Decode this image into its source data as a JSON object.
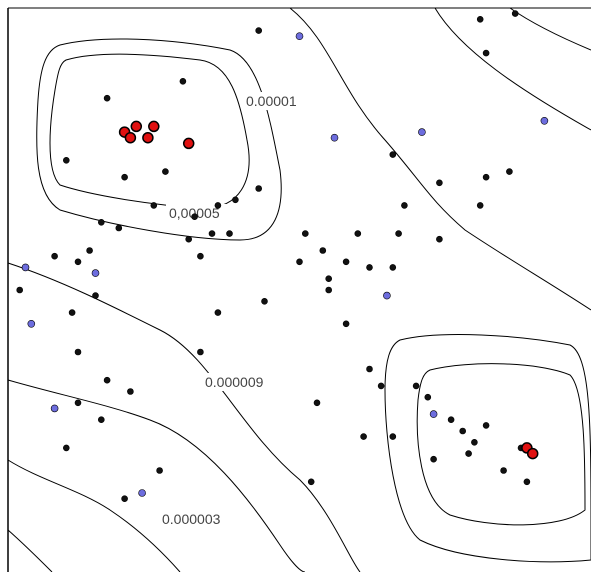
{
  "colors": {
    "background": "#ffffff",
    "frame": "#000000",
    "contour": "#000000",
    "point_black": "#111111",
    "point_blue": "#6d6dde",
    "point_red": "#e01010"
  },
  "chart_data": {
    "type": "scatter",
    "title": "",
    "xlabel": "",
    "ylabel": "",
    "grid": false,
    "legend": "none",
    "contour_labels": [
      "0.00001",
      "0,00005",
      "0.000009",
      "0.000003"
    ],
    "series": [
      {
        "color": "#111111",
        "points": [
          [
            0.43,
            0.96
          ],
          [
            0.3,
            0.87
          ],
          [
            0.17,
            0.84
          ],
          [
            0.1,
            0.73
          ],
          [
            0.2,
            0.7
          ],
          [
            0.27,
            0.71
          ],
          [
            0.25,
            0.65
          ],
          [
            0.36,
            0.65
          ],
          [
            0.39,
            0.66
          ],
          [
            0.32,
            0.63
          ],
          [
            0.35,
            0.6
          ],
          [
            0.31,
            0.59
          ],
          [
            0.38,
            0.6
          ],
          [
            0.33,
            0.56
          ],
          [
            0.43,
            0.68
          ],
          [
            0.19,
            0.61
          ],
          [
            0.16,
            0.62
          ],
          [
            0.14,
            0.57
          ],
          [
            0.12,
            0.55
          ],
          [
            0.08,
            0.56
          ],
          [
            0.02,
            0.5
          ],
          [
            0.11,
            0.46
          ],
          [
            0.15,
            0.49
          ],
          [
            0.12,
            0.39
          ],
          [
            0.33,
            0.39
          ],
          [
            0.36,
            0.46
          ],
          [
            0.44,
            0.48
          ],
          [
            0.5,
            0.55
          ],
          [
            0.51,
            0.6
          ],
          [
            0.54,
            0.57
          ],
          [
            0.55,
            0.52
          ],
          [
            0.58,
            0.55
          ],
          [
            0.6,
            0.6
          ],
          [
            0.62,
            0.54
          ],
          [
            0.66,
            0.54
          ],
          [
            0.67,
            0.6
          ],
          [
            0.55,
            0.5
          ],
          [
            0.58,
            0.44
          ],
          [
            0.66,
            0.74
          ],
          [
            0.68,
            0.65
          ],
          [
            0.74,
            0.59
          ],
          [
            0.74,
            0.69
          ],
          [
            0.81,
            0.65
          ],
          [
            0.82,
            0.7
          ],
          [
            0.86,
            0.71
          ],
          [
            0.62,
            0.36
          ],
          [
            0.64,
            0.33
          ],
          [
            0.82,
            0.26
          ],
          [
            0.88,
            0.22
          ],
          [
            0.85,
            0.18
          ],
          [
            0.89,
            0.16
          ],
          [
            0.2,
            0.13
          ],
          [
            0.26,
            0.18
          ],
          [
            0.12,
            0.3
          ],
          [
            0.16,
            0.27
          ],
          [
            0.1,
            0.22
          ],
          [
            0.21,
            0.32
          ],
          [
            0.17,
            0.34
          ],
          [
            0.52,
            0.16
          ],
          [
            0.61,
            0.24
          ],
          [
            0.53,
            0.3
          ],
          [
            0.81,
            0.98
          ],
          [
            0.82,
            0.92
          ],
          [
            0.87,
            0.99
          ],
          [
            0.66,
            0.24
          ],
          [
            0.78,
            0.25
          ],
          [
            0.8,
            0.23
          ],
          [
            0.79,
            0.21
          ],
          [
            0.76,
            0.27
          ],
          [
            0.7,
            0.33
          ],
          [
            0.72,
            0.31
          ],
          [
            0.73,
            0.2
          ]
        ]
      },
      {
        "color": "#6d6dde",
        "points": [
          [
            0.5,
            0.95
          ],
          [
            0.56,
            0.77
          ],
          [
            0.71,
            0.78
          ],
          [
            0.92,
            0.8
          ],
          [
            0.03,
            0.54
          ],
          [
            0.15,
            0.53
          ],
          [
            0.04,
            0.44
          ],
          [
            0.65,
            0.49
          ],
          [
            0.73,
            0.28
          ],
          [
            0.08,
            0.29
          ],
          [
            0.23,
            0.14
          ]
        ]
      },
      {
        "color": "#e01010",
        "points": [
          [
            0.2,
            0.78
          ],
          [
            0.22,
            0.79
          ],
          [
            0.25,
            0.79
          ],
          [
            0.21,
            0.77
          ],
          [
            0.24,
            0.77
          ],
          [
            0.31,
            0.76
          ],
          [
            0.89,
            0.22
          ],
          [
            0.9,
            0.21
          ]
        ]
      }
    ]
  }
}
